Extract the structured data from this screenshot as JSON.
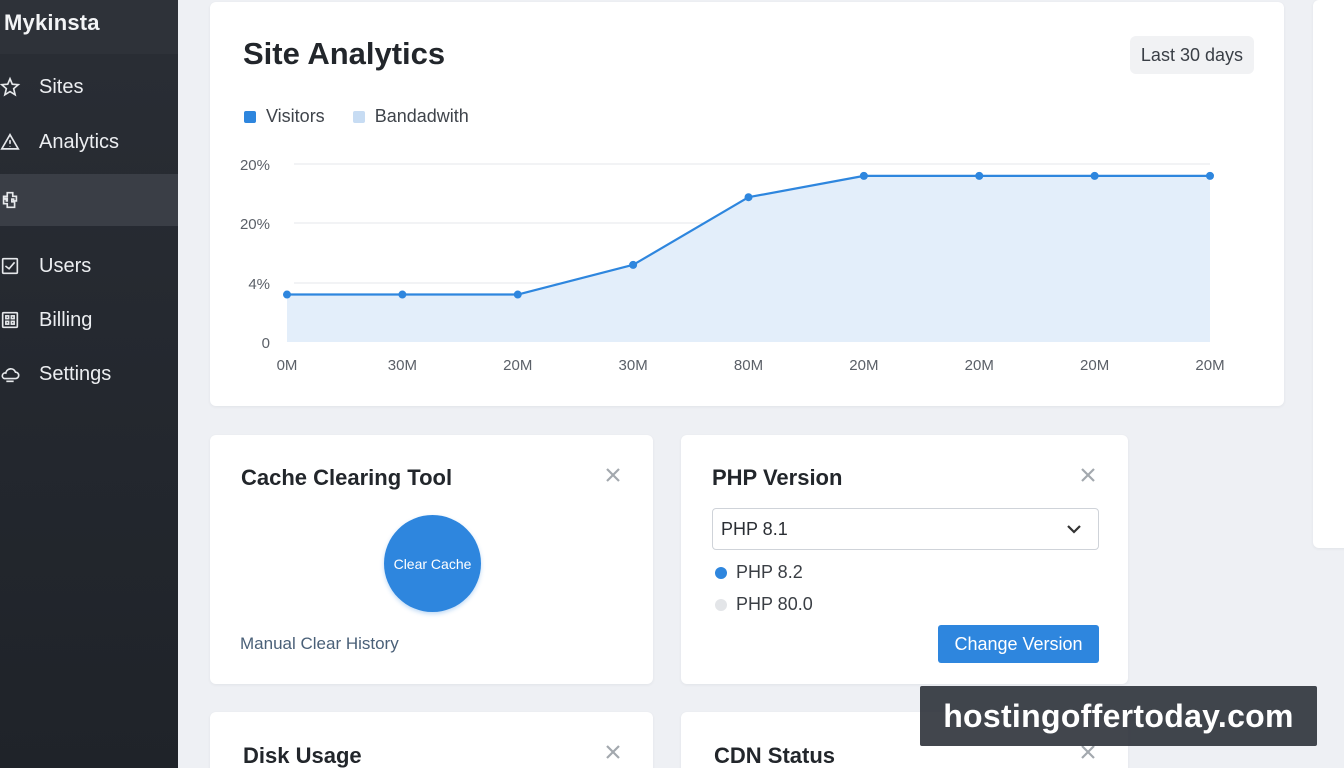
{
  "sidebar": {
    "brand": "Mykinsta",
    "items": [
      {
        "label": "Sites",
        "icon": "star-icon"
      },
      {
        "label": "Analytics",
        "icon": "warning-triangle-icon"
      },
      {
        "label": "",
        "icon": "puzzle-icon",
        "active": true
      },
      {
        "label": "Users",
        "icon": "checkbox-icon"
      },
      {
        "label": "Billing",
        "icon": "grid-icon"
      },
      {
        "label": "Settings",
        "icon": "cloud-icon"
      }
    ]
  },
  "analytics": {
    "title": "Site Analytics",
    "range_label": "Last 30 days",
    "legend": [
      {
        "label": "Visitors",
        "color": "#2e86de"
      },
      {
        "label": "Bandadwith",
        "color": "#c7dcf3"
      }
    ]
  },
  "chart_data": {
    "type": "area",
    "title": "Site Analytics",
    "categories": [
      "0M",
      "30M",
      "20M",
      "30M",
      "80M",
      "20M",
      "20M",
      "20M",
      "20M"
    ],
    "y_tick_labels": [
      "0",
      "4%",
      "20%",
      "20%"
    ],
    "series": [
      {
        "name": "Visitors",
        "values": [
          4,
          4,
          4,
          6.5,
          12.2,
          14,
          14,
          14,
          14
        ],
        "color": "#2e86de"
      }
    ],
    "y_scale_max": 15,
    "fill_color": "#e3eefa",
    "grid": true,
    "legend_position": "top-left"
  },
  "cache_tool": {
    "title": "Cache Clearing Tool",
    "button_label": "Clear Cache",
    "history_link": "Manual Clear History"
  },
  "php": {
    "title": "PHP Version",
    "selected": "PHP 8.1",
    "options": [
      {
        "label": "PHP 8.2",
        "checked": true
      },
      {
        "label": "PHP 80.0",
        "checked": false
      }
    ],
    "change_button": "Change Version"
  },
  "disk": {
    "title": "Disk Usage"
  },
  "cdn": {
    "title": "CDN Status"
  },
  "watermark": "hostingoffertoday.com",
  "colors": {
    "accent": "#2e86de",
    "sidebar": "#24282f"
  }
}
